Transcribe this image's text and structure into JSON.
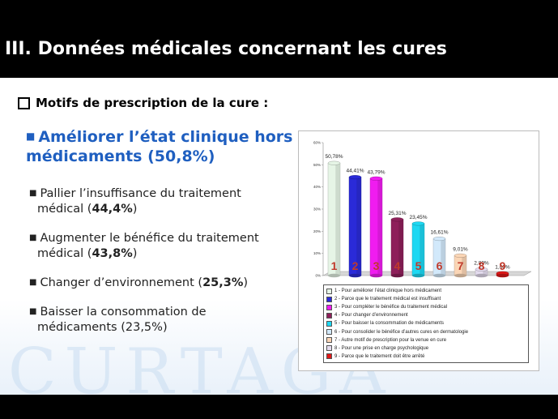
{
  "slide": {
    "title": "III. Données médicales concernant les cures",
    "subtitle": "Motifs de prescription de la cure :",
    "main_point": "Améliorer l’état clinique hors médicaments (50,8%)",
    "points": [
      {
        "line1": "Pallier l’insuffisance du traitement",
        "line2_pre": "médical (",
        "bold": "44,4%",
        "line2_post": ")"
      },
      {
        "line1": "Augmenter le bénéfice du traitement",
        "line2_pre": "médical (",
        "bold": "43,8%",
        "line2_post": ")"
      },
      {
        "line1": "Changer d’environnement (",
        "bold": "25,3%",
        "line1_post": ")",
        "line2_pre": "",
        "line2_post": ""
      },
      {
        "line1": "Baisser la consommation de",
        "line2_pre": "médicaments (23,5%)",
        "bold": "",
        "line2_post": ""
      }
    ],
    "watermark": "CURTAGA"
  },
  "chart_data": {
    "type": "bar",
    "categories": [
      "1",
      "2",
      "3",
      "4",
      "5",
      "6",
      "7",
      "8",
      "9"
    ],
    "values": [
      50.78,
      44.41,
      43.79,
      25.31,
      23.45,
      16.61,
      9.01,
      2.8,
      1.0
    ],
    "value_labels": [
      "50,78%",
      "44,41%",
      "43,79%",
      "25,31%",
      "23,45%",
      "16,61%",
      "9,01%",
      "2,80%",
      "1,00%"
    ],
    "colors": [
      "#e6f5e6",
      "#2a2ad8",
      "#f01cf0",
      "#8e1f5a",
      "#1ed8f2",
      "#d2e9fb",
      "#fbd6b6",
      "#e4dcef",
      "#e01818"
    ],
    "ylim": [
      0,
      60
    ],
    "ytick_labels": [
      "0%",
      "10%",
      "20%",
      "30%",
      "40%",
      "50%",
      "60%"
    ],
    "legend": [
      "1 - Pour améliorer l’état clinique hors médicament",
      "2 - Parce que le traitement médical est insuffisant",
      "3 - Pour compléter le bénéfice du traitement médical",
      "4 - Pour changer d’environnement",
      "5 - Pour baisser la consommation de médicaments",
      "6 - Pour consolider le bénéfice d’autres cures en dermatologie",
      "7 - Autre motif de prescription pour la venue en cure",
      "8 - Pour une prise en charge psychologique",
      "9 - Parce que le traitement doit être arrêté"
    ],
    "legend_placement": "bottom",
    "grid": false
  }
}
